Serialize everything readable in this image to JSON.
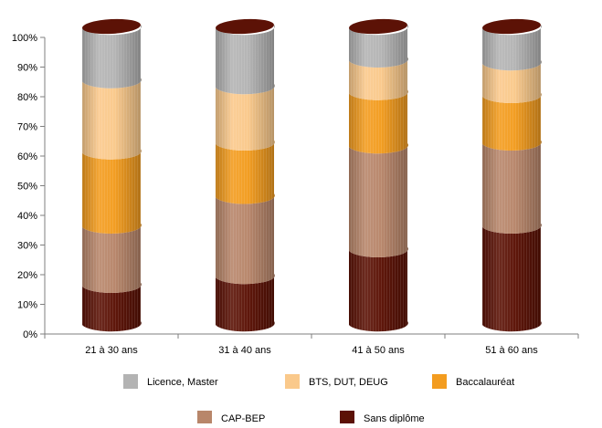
{
  "chart_data": {
    "type": "bar",
    "stacked": true,
    "style": "3d-cylinder",
    "categories": [
      "21 à 30 ans",
      "31 à 40 ans",
      "41 à 50 ans",
      "51 à 60 ans"
    ],
    "yticks": [
      "0%",
      "10%",
      "20%",
      "30%",
      "40%",
      "50%",
      "60%",
      "70%",
      "80%",
      "90%",
      "100%"
    ],
    "ylim": [
      0,
      100
    ],
    "grid": false,
    "legend_position": "bottom",
    "series": [
      {
        "name": "Sans diplôme",
        "color": "#5c1206",
        "values": [
          13,
          16,
          25,
          33
        ]
      },
      {
        "name": "CAP-BEP",
        "color": "#b8866a",
        "values": [
          20,
          27,
          35,
          28
        ]
      },
      {
        "name": "Baccalauréat",
        "color": "#f39c1f",
        "values": [
          25,
          18,
          18,
          16
        ]
      },
      {
        "name": "BTS, DUT, DEUG",
        "color": "#fac98b",
        "values": [
          24,
          19,
          11,
          11
        ]
      },
      {
        "name": "Licence, Master",
        "color": "#b3b3b3",
        "values": [
          18,
          20,
          11,
          12
        ]
      }
    ],
    "cap_color": "#5c1206"
  },
  "legend": {
    "rows": [
      [
        "Licence, Master",
        "BTS, DUT, DEUG",
        "Baccalauréat"
      ],
      [
        "CAP-BEP",
        "Sans diplôme"
      ]
    ]
  }
}
